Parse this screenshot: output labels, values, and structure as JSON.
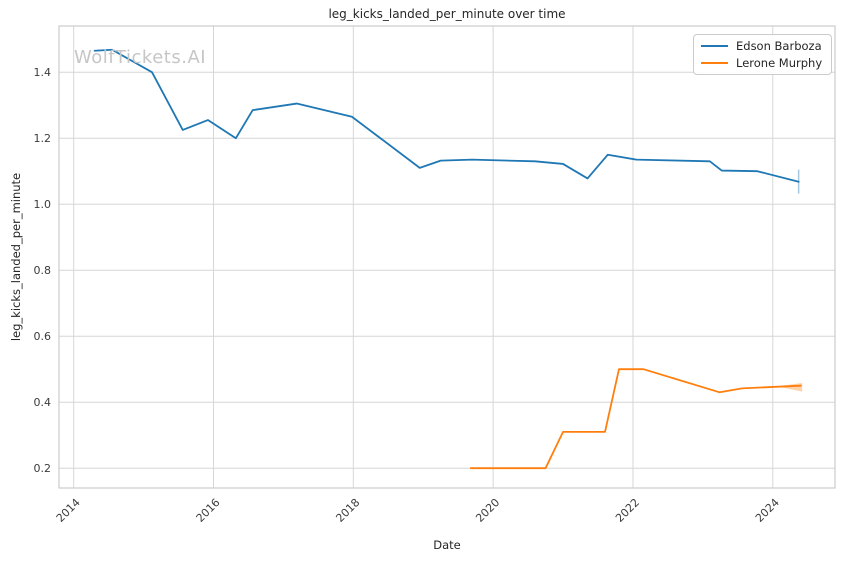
{
  "watermark": "WolfTickets.AI",
  "chart_data": {
    "type": "line",
    "title": "leg_kicks_landed_per_minute over time",
    "xlabel": "Date",
    "ylabel": "leg_kicks_landed_per_minute",
    "xlim": [
      2013.79,
      2024.89
    ],
    "ylim": [
      0.14,
      1.54
    ],
    "x_ticks": [
      2014,
      2016,
      2018,
      2020,
      2022,
      2024
    ],
    "y_ticks": [
      0.2,
      0.4,
      0.6,
      0.8,
      1.0,
      1.2,
      1.4
    ],
    "grid": true,
    "legend_position": "upper right",
    "colors": {
      "grid": "#d6d6d6",
      "spine": "#cccccc",
      "text": "#262626",
      "tick_text": "#3b3b3b"
    },
    "series": [
      {
        "name": "Edson Barboza",
        "color": "#1f77b4",
        "x": [
          2014.3,
          2014.55,
          2015.12,
          2015.56,
          2015.92,
          2016.32,
          2016.56,
          2017.19,
          2017.98,
          2018.95,
          2019.25,
          2019.7,
          2020.6,
          2021.0,
          2021.35,
          2021.64,
          2022.05,
          2023.1,
          2023.27,
          2023.78,
          2024.37
        ],
        "y": [
          1.465,
          1.468,
          1.4,
          1.225,
          1.255,
          1.2,
          1.285,
          1.305,
          1.265,
          1.11,
          1.132,
          1.135,
          1.13,
          1.122,
          1.078,
          1.15,
          1.135,
          1.13,
          1.102,
          1.1,
          1.068
        ],
        "end_errorbar": {
          "x": 2024.37,
          "y_low": 1.032,
          "y_high": 1.105
        }
      },
      {
        "name": "Lerone Murphy",
        "color": "#ff7f0e",
        "x": [
          2019.68,
          2020.3,
          2020.75,
          2021.0,
          2021.6,
          2021.8,
          2022.15,
          2023.24,
          2023.56,
          2024.4
        ],
        "y": [
          0.2,
          0.2,
          0.2,
          0.31,
          0.31,
          0.5,
          0.5,
          0.43,
          0.442,
          0.45
        ],
        "end_band": {
          "points_x": [
            2024.06,
            2024.42,
            2024.42
          ],
          "points_y": [
            0.448,
            0.458,
            0.432
          ]
        }
      }
    ]
  }
}
